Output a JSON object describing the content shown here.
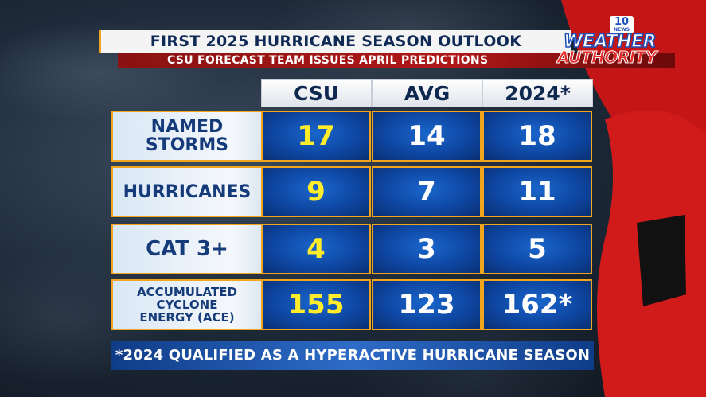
{
  "header": {
    "title": "FIRST 2025 HURRICANE SEASON OUTLOOK",
    "subtitle": "CSU FORECAST TEAM ISSUES APRIL PREDICTIONS"
  },
  "logo": {
    "badge_number": "10",
    "badge_text": "NEWS",
    "word_top": "WEATHER",
    "word_bottom": "AUTHORITY"
  },
  "table": {
    "columns": [
      "CSU",
      "AVG",
      "2024*"
    ],
    "rows": [
      {
        "label_line1": "NAMED",
        "label_line2": "STORMS",
        "label_line3": "",
        "csu": "17",
        "avg": "14",
        "y2024": "18"
      },
      {
        "label_line1": "HURRICANES",
        "label_line2": "",
        "label_line3": "",
        "csu": "9",
        "avg": "7",
        "y2024": "11"
      },
      {
        "label_line1": "CAT 3+",
        "label_line2": "",
        "label_line3": "",
        "csu": "4",
        "avg": "3",
        "y2024": "5"
      },
      {
        "label_line1": "ACCUMULATED",
        "label_line2": "CYCLONE",
        "label_line3": "ENERGY (ACE)",
        "csu": "155",
        "avg": "123",
        "y2024": "162*"
      }
    ]
  },
  "footnote": "*2024 QUALIFIED AS A HYPERACTIVE HURRICANE SEASON",
  "colors": {
    "accent_gold": "#f0a51c",
    "csu_yellow": "#ffec2a",
    "cell_blue": "#0e47a3",
    "flag_red": "#d11a1a"
  }
}
